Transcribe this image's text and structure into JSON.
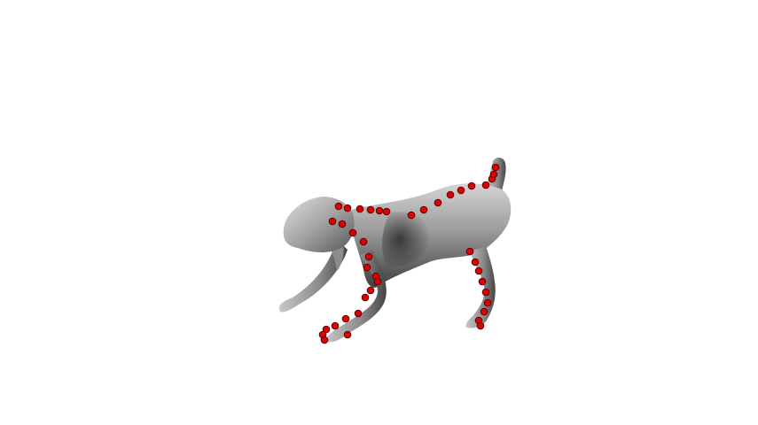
{
  "scene": {
    "background_color": "#ffffff",
    "model": {
      "subject": "dog-mesh",
      "shading": "gray",
      "color_light": "#d6d6d6",
      "color_mid": "#9a9a9a",
      "color_dark": "#3c3c3c"
    },
    "markers": {
      "color": "#e00000",
      "stroke": "#5a0000"
    }
  }
}
